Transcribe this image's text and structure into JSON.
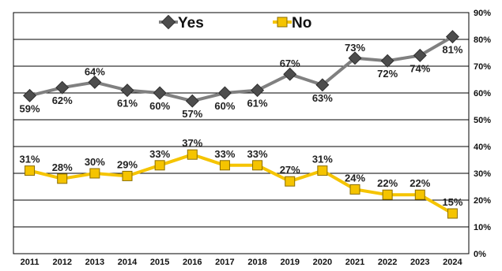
{
  "chart_data": {
    "type": "line",
    "title": "",
    "xlabel": "",
    "ylabel": "",
    "categories": [
      "2011",
      "2012",
      "2013",
      "2014",
      "2015",
      "2016",
      "2017",
      "2018",
      "2019",
      "2020",
      "2021",
      "2022",
      "2023",
      "2024"
    ],
    "ylim": [
      0,
      90
    ],
    "yticks": [
      0,
      10,
      20,
      30,
      40,
      50,
      60,
      70,
      80,
      90
    ],
    "ytick_labels": [
      "0%",
      "10%",
      "20%",
      "30%",
      "40%",
      "50%",
      "60%",
      "70%",
      "80%",
      "90%"
    ],
    "y_axis_side": "right",
    "grid": true,
    "legend_position": "top-center",
    "series": [
      {
        "name": "Yes",
        "values": [
          59,
          62,
          64,
          61,
          60,
          57,
          60,
          61,
          67,
          63,
          73,
          72,
          74,
          81
        ],
        "labels": [
          "59%",
          "62%",
          "64%",
          "61%",
          "60%",
          "57%",
          "60%",
          "61%",
          "67%",
          "63%",
          "73%",
          "72%",
          "74%",
          "81%"
        ],
        "color": "#808080",
        "marker_color": "#4d4d4d",
        "marker": "diamond"
      },
      {
        "name": "No",
        "values": [
          31,
          28,
          30,
          29,
          33,
          37,
          33,
          33,
          27,
          31,
          24,
          22,
          22,
          15
        ],
        "labels": [
          "31%",
          "28%",
          "30%",
          "29%",
          "33%",
          "37%",
          "33%",
          "33%",
          "27%",
          "31%",
          "24%",
          "22%",
          "22%",
          "15%"
        ],
        "color": "#f5c400",
        "marker_color": "#f5c400",
        "marker": "square"
      }
    ]
  }
}
